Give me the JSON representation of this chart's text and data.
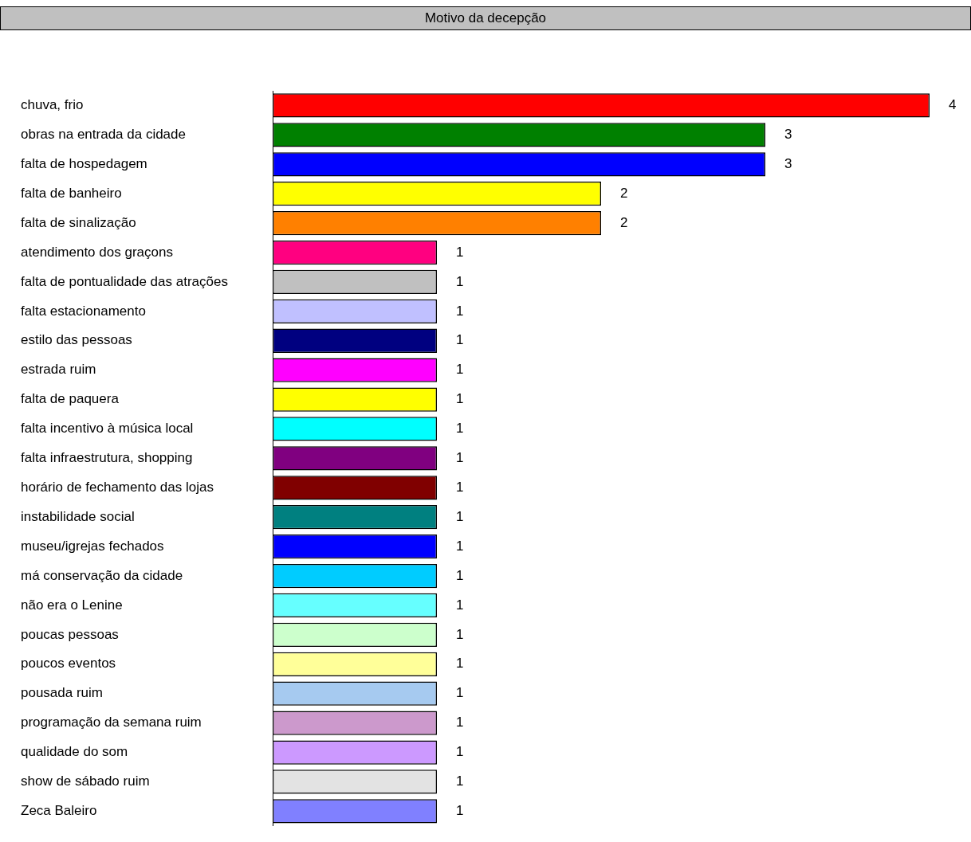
{
  "chart_data": {
    "type": "bar",
    "orientation": "horizontal",
    "title": "Motivo da decepção",
    "categories": [
      "chuva, frio",
      "obras na entrada da cidade",
      "falta de hospedagem",
      "falta de banheiro",
      "falta de sinalização",
      "atendimento dos graçons",
      "falta de pontualidade das atrações",
      "falta estacionamento",
      "estilo das pessoas",
      "estrada ruim",
      "falta de paquera",
      "falta incentivo à música local",
      "falta infraestrutura, shopping",
      "horário de fechamento das lojas",
      "instabilidade social",
      "museu/igrejas fechados",
      "má conservação da cidade",
      "não era o Lenine",
      "poucas pessoas",
      "poucos eventos",
      "pousada ruim",
      "programação da semana ruim",
      "qualidade do som",
      "show de sábado ruim",
      "Zeca Baleiro"
    ],
    "values": [
      4,
      3,
      3,
      2,
      2,
      1,
      1,
      1,
      1,
      1,
      1,
      1,
      1,
      1,
      1,
      1,
      1,
      1,
      1,
      1,
      1,
      1,
      1,
      1,
      1
    ],
    "colors": [
      "#ff0000",
      "#008000",
      "#0000ff",
      "#ffff00",
      "#ff8000",
      "#ff0080",
      "#c0c0c0",
      "#c0c0ff",
      "#000080",
      "#ff00ff",
      "#ffff00",
      "#00ffff",
      "#800080",
      "#800000",
      "#008080",
      "#0000ff",
      "#00ccff",
      "#66ffff",
      "#ccffcc",
      "#ffff99",
      "#a6caf0",
      "#cc99cc",
      "#cc99ff",
      "#e3e3e3",
      "#8080ff"
    ],
    "data_labels": true,
    "grid": false,
    "legend": false,
    "tick_labels": "y"
  }
}
